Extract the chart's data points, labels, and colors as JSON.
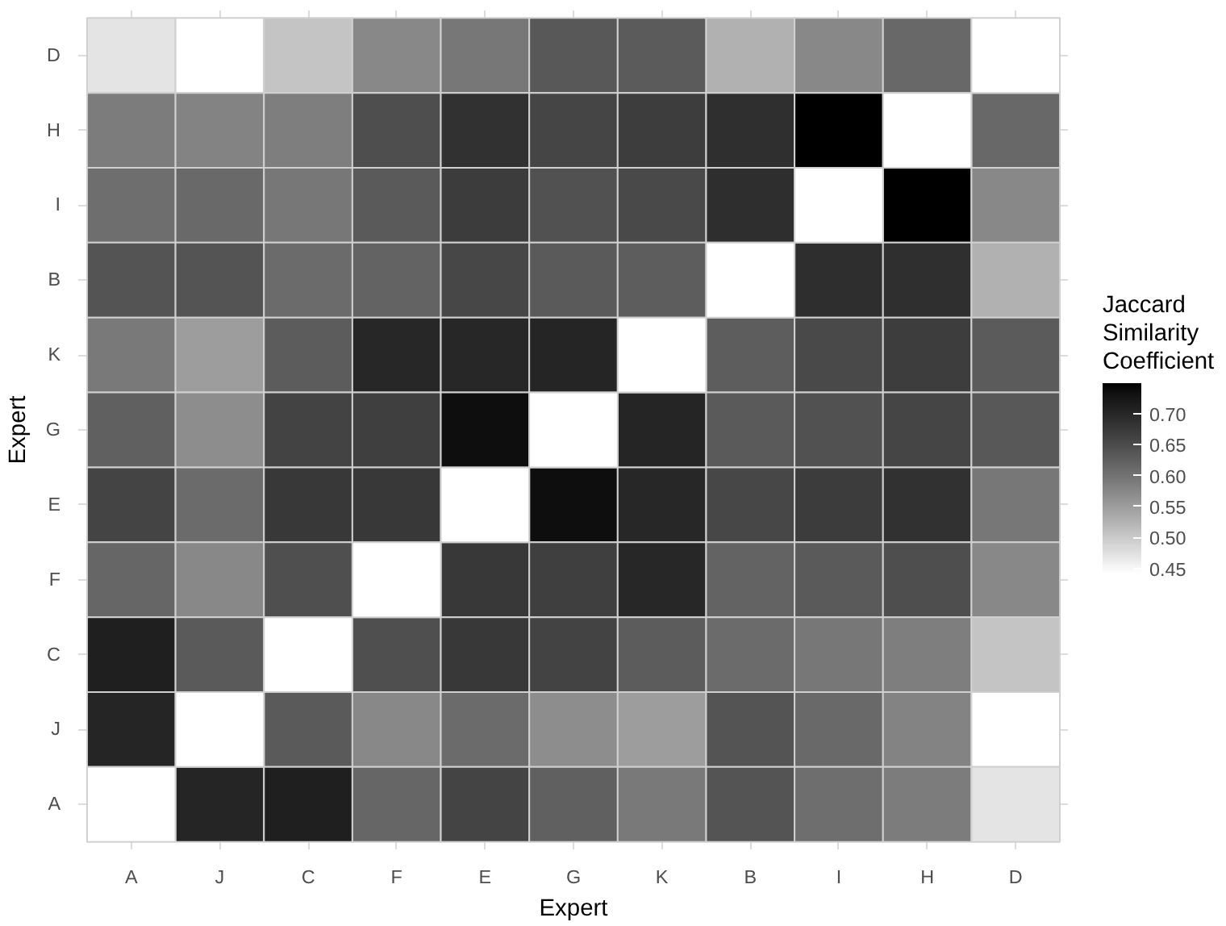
{
  "chart_data": {
    "type": "heatmap",
    "xlabel": "Expert",
    "ylabel": "Expert",
    "clabel": "Jaccard Similarity Coefficient",
    "categories": [
      "A",
      "J",
      "C",
      "F",
      "E",
      "G",
      "K",
      "B",
      "I",
      "H",
      "D"
    ],
    "y_categories": [
      "D",
      "H",
      "I",
      "B",
      "K",
      "G",
      "E",
      "F",
      "C",
      "J",
      "A"
    ],
    "cells": [
      [
        0.471,
        0.442,
        0.506,
        0.575,
        0.595,
        0.634,
        0.63,
        0.528,
        0.575,
        0.614,
        null
      ],
      [
        0.589,
        0.58,
        0.587,
        0.646,
        0.686,
        0.658,
        0.669,
        0.688,
        0.749,
        null,
        0.614
      ],
      [
        0.607,
        0.613,
        0.595,
        0.632,
        0.671,
        0.643,
        0.654,
        0.691,
        null,
        0.749,
        0.575
      ],
      [
        0.639,
        0.639,
        0.611,
        0.62,
        0.656,
        0.632,
        0.627,
        null,
        0.691,
        0.688,
        0.528
      ],
      [
        0.592,
        0.551,
        0.628,
        0.7,
        0.7,
        0.703,
        null,
        0.627,
        0.654,
        0.669,
        0.63
      ],
      [
        0.624,
        0.569,
        0.662,
        0.667,
        0.737,
        null,
        0.703,
        0.632,
        0.643,
        0.658,
        0.634
      ],
      [
        0.66,
        0.61,
        0.677,
        0.677,
        null,
        0.737,
        0.7,
        0.656,
        0.671,
        0.686,
        0.595
      ],
      [
        0.616,
        0.574,
        0.645,
        null,
        0.677,
        0.667,
        0.7,
        0.62,
        0.632,
        0.646,
        0.575
      ],
      [
        0.713,
        0.632,
        null,
        0.645,
        0.677,
        0.662,
        0.628,
        0.611,
        0.595,
        0.587,
        0.506
      ],
      [
        0.704,
        null,
        0.632,
        0.574,
        0.61,
        0.569,
        0.551,
        0.639,
        0.613,
        0.58,
        0.442
      ],
      [
        null,
        0.704,
        0.713,
        0.616,
        0.66,
        0.624,
        0.592,
        0.639,
        0.607,
        0.589,
        0.471
      ]
    ],
    "clim": [
      0.442,
      0.749
    ],
    "cticks": [
      0.45,
      {
        "value": 0.5,
        "label": "0.50"
      },
      0.55,
      {
        "value": 0.6,
        "label": "0.60"
      },
      0.65,
      {
        "value": 0.7,
        "label": "0.70"
      }
    ],
    "colors": [
      "#ffffff",
      "#000000"
    ],
    "grid": true
  }
}
